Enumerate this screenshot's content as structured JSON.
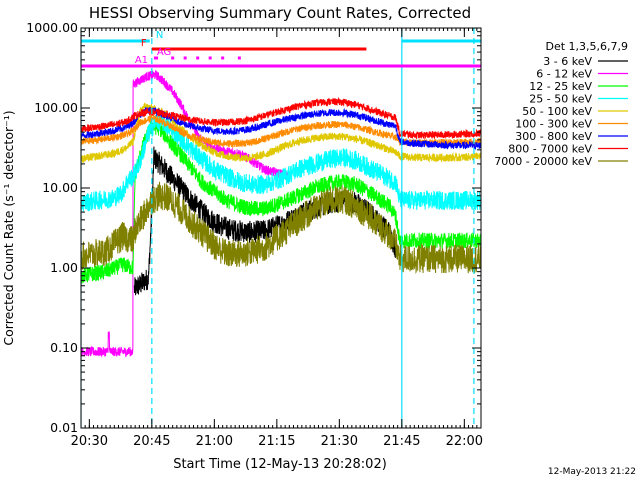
{
  "chart_data": {
    "type": "line",
    "title": "HESSI Observing Summary Count Rates, Corrected",
    "xlabel": "Start Time (12-May-13 20:28:02)",
    "ylabel": "Corrected Count Rate (s⁻¹ detector⁻¹)",
    "y_scale": "log",
    "ylim": [
      0.01,
      1000
    ],
    "xlim_minutes_after_start": [
      0,
      96
    ],
    "x_ticks": [
      {
        "label": "20:30",
        "t": 2
      },
      {
        "label": "20:45",
        "t": 17
      },
      {
        "label": "21:00",
        "t": 32
      },
      {
        "label": "21:15",
        "t": 47
      },
      {
        "label": "21:30",
        "t": 62
      },
      {
        "label": "21:45",
        "t": 77
      },
      {
        "label": "22:00",
        "t": 92
      }
    ],
    "y_ticks": [
      {
        "label": "1000.00",
        "v": 1000
      },
      {
        "label": "100.00",
        "v": 100
      },
      {
        "label": "10.00",
        "v": 10
      },
      {
        "label": "1.00",
        "v": 1
      },
      {
        "label": "0.10",
        "v": 0.1
      },
      {
        "label": "0.01",
        "v": 0.01
      }
    ],
    "legend_title": "Det 1,3,5,6,7,9",
    "legend_position": "right",
    "series": [
      {
        "name": "3 - 6 keV",
        "color": "#000000",
        "noise": 0.14,
        "points": [
          [
            12.8,
            0.55
          ],
          [
            14.2,
            0.62
          ],
          [
            16.2,
            0.75
          ],
          [
            17.0,
            5
          ],
          [
            17.5,
            24
          ],
          [
            19,
            20
          ],
          [
            21,
            15
          ],
          [
            24,
            10
          ],
          [
            27,
            6.5
          ],
          [
            30,
            4.5
          ],
          [
            33,
            3.5
          ],
          [
            36,
            3
          ],
          [
            40,
            2.8
          ],
          [
            44,
            2.9
          ],
          [
            48,
            3.5
          ],
          [
            52,
            4.5
          ],
          [
            56,
            5.6
          ],
          [
            60,
            6.5
          ],
          [
            63,
            7
          ],
          [
            66,
            6.5
          ],
          [
            69,
            5
          ],
          [
            72,
            3.5
          ],
          [
            74,
            2.8
          ],
          [
            75.5,
            1.8
          ]
        ]
      },
      {
        "name": "6 - 12 keV",
        "color": "#ff00ff",
        "noise": 0.06,
        "points": [
          [
            0,
            0.09
          ],
          [
            6.5,
            0.09
          ],
          [
            6.8,
            0.15
          ],
          [
            7.1,
            0.09
          ],
          [
            12.5,
            0.09
          ],
          [
            12.8,
            200
          ],
          [
            14,
            220
          ],
          [
            16,
            250
          ],
          [
            18,
            260
          ],
          [
            20,
            210
          ],
          [
            22,
            160
          ],
          [
            24,
            110
          ],
          [
            26,
            70
          ],
          [
            28,
            45
          ],
          [
            31,
            33
          ],
          [
            34,
            29
          ],
          [
            36,
            28
          ],
          [
            38,
            27
          ],
          [
            41,
            22
          ],
          [
            44,
            17
          ],
          [
            48,
            15
          ],
          [
            50,
            14
          ]
        ]
      },
      {
        "name": "12 - 25 keV",
        "color": "#00ff00",
        "noise": 0.1,
        "points": [
          [
            0,
            0.8
          ],
          [
            3,
            0.85
          ],
          [
            6,
            0.9
          ],
          [
            8,
            1.0
          ],
          [
            10,
            1.1
          ],
          [
            12.5,
            1.0
          ],
          [
            13,
            15
          ],
          [
            15,
            35
          ],
          [
            17,
            60
          ],
          [
            19,
            55
          ],
          [
            21,
            40
          ],
          [
            23,
            30
          ],
          [
            26,
            19
          ],
          [
            29,
            12
          ],
          [
            32,
            9
          ],
          [
            35,
            7
          ],
          [
            38,
            6
          ],
          [
            41,
            5.5
          ],
          [
            44,
            5.5
          ],
          [
            48,
            6.5
          ],
          [
            52,
            8
          ],
          [
            56,
            10
          ],
          [
            60,
            11.5
          ],
          [
            63,
            12
          ],
          [
            66,
            11
          ],
          [
            69,
            9
          ],
          [
            72,
            7
          ],
          [
            74,
            6
          ],
          [
            75.5,
            4.5
          ],
          [
            76.5,
            2.2
          ],
          [
            96,
            2.2
          ]
        ]
      },
      {
        "name": "25 - 50 keV",
        "color": "#00ffff",
        "noise": 0.12,
        "points": [
          [
            0,
            6.5
          ],
          [
            4,
            7
          ],
          [
            8,
            7.5
          ],
          [
            10,
            9
          ],
          [
            11,
            12
          ],
          [
            12.5,
            14
          ],
          [
            14,
            20
          ],
          [
            16,
            45
          ],
          [
            18,
            70
          ],
          [
            20,
            65
          ],
          [
            22,
            52
          ],
          [
            24,
            42
          ],
          [
            26,
            32
          ],
          [
            29,
            23
          ],
          [
            32,
            17
          ],
          [
            35,
            14
          ],
          [
            38,
            12
          ],
          [
            41,
            11
          ],
          [
            44,
            11
          ],
          [
            48,
            13
          ],
          [
            52,
            17
          ],
          [
            56,
            20
          ],
          [
            60,
            23
          ],
          [
            63,
            24
          ],
          [
            66,
            22
          ],
          [
            69,
            18
          ],
          [
            72,
            15
          ],
          [
            74,
            13
          ],
          [
            75.5,
            12
          ],
          [
            76.5,
            7
          ],
          [
            96,
            7
          ]
        ]
      },
      {
        "name": "50 - 100 keV",
        "color": "#e0c800",
        "noise": 0.05,
        "points": [
          [
            0,
            23
          ],
          [
            4,
            25
          ],
          [
            8,
            27
          ],
          [
            11,
            32
          ],
          [
            12.5,
            38
          ],
          [
            14,
            85
          ],
          [
            15,
            105
          ],
          [
            17,
            100
          ],
          [
            19,
            90
          ],
          [
            21,
            80
          ],
          [
            23,
            62
          ],
          [
            26,
            45
          ],
          [
            29,
            34
          ],
          [
            32,
            28
          ],
          [
            35,
            25
          ],
          [
            38,
            24
          ],
          [
            41,
            24
          ],
          [
            44,
            26
          ],
          [
            48,
            32
          ],
          [
            52,
            38
          ],
          [
            56,
            42
          ],
          [
            60,
            44
          ],
          [
            63,
            44
          ],
          [
            66,
            41
          ],
          [
            69,
            37
          ],
          [
            72,
            33
          ],
          [
            74,
            30
          ],
          [
            75.5,
            28
          ],
          [
            76.5,
            25
          ],
          [
            80,
            24
          ],
          [
            85,
            24
          ],
          [
            90,
            24
          ],
          [
            96,
            25
          ]
        ]
      },
      {
        "name": "100 - 300 keV",
        "color": "#ff8c00",
        "noise": 0.045,
        "points": [
          [
            0,
            38
          ],
          [
            4,
            40
          ],
          [
            8,
            43
          ],
          [
            11,
            47
          ],
          [
            12.5,
            52
          ],
          [
            14,
            65
          ],
          [
            17,
            75
          ],
          [
            19,
            70
          ],
          [
            21,
            62
          ],
          [
            23,
            54
          ],
          [
            26,
            45
          ],
          [
            29,
            40
          ],
          [
            32,
            37
          ],
          [
            35,
            36
          ],
          [
            38,
            36
          ],
          [
            41,
            37
          ],
          [
            44,
            41
          ],
          [
            48,
            48
          ],
          [
            52,
            55
          ],
          [
            56,
            60
          ],
          [
            60,
            62
          ],
          [
            63,
            62
          ],
          [
            66,
            58
          ],
          [
            69,
            53
          ],
          [
            72,
            48
          ],
          [
            74,
            45
          ],
          [
            75.5,
            43
          ],
          [
            76.5,
            38
          ],
          [
            80,
            37
          ],
          [
            85,
            37
          ],
          [
            90,
            37
          ],
          [
            96,
            38
          ]
        ]
      },
      {
        "name": "300 - 800 keV",
        "color": "#0000ff",
        "noise": 0.045,
        "points": [
          [
            0,
            45
          ],
          [
            4,
            48
          ],
          [
            8,
            52
          ],
          [
            11,
            58
          ],
          [
            12.5,
            66
          ],
          [
            14,
            82
          ],
          [
            16,
            95
          ],
          [
            18,
            90
          ],
          [
            20,
            82
          ],
          [
            22,
            74
          ],
          [
            24,
            66
          ],
          [
            26,
            60
          ],
          [
            29,
            55
          ],
          [
            32,
            52
          ],
          [
            35,
            51
          ],
          [
            38,
            52
          ],
          [
            41,
            55
          ],
          [
            44,
            61
          ],
          [
            48,
            70
          ],
          [
            52,
            78
          ],
          [
            56,
            84
          ],
          [
            60,
            88
          ],
          [
            63,
            87
          ],
          [
            66,
            82
          ],
          [
            69,
            74
          ],
          [
            72,
            66
          ],
          [
            74,
            62
          ],
          [
            75.5,
            60
          ],
          [
            76.5,
            38
          ],
          [
            80,
            36
          ],
          [
            85,
            35
          ],
          [
            90,
            34
          ],
          [
            96,
            34
          ]
        ]
      },
      {
        "name": "800 - 7000 keV",
        "color": "#ff0000",
        "noise": 0.045,
        "points": [
          [
            0,
            55
          ],
          [
            4,
            58
          ],
          [
            8,
            62
          ],
          [
            11,
            68
          ],
          [
            12.5,
            78
          ],
          [
            14,
            85
          ],
          [
            16,
            90
          ],
          [
            18,
            88
          ],
          [
            20,
            84
          ],
          [
            22,
            80
          ],
          [
            24,
            76
          ],
          [
            26,
            72
          ],
          [
            29,
            68
          ],
          [
            32,
            66
          ],
          [
            35,
            66
          ],
          [
            38,
            68
          ],
          [
            41,
            72
          ],
          [
            44,
            80
          ],
          [
            48,
            92
          ],
          [
            52,
            105
          ],
          [
            56,
            115
          ],
          [
            60,
            120
          ],
          [
            63,
            118
          ],
          [
            66,
            110
          ],
          [
            69,
            98
          ],
          [
            72,
            86
          ],
          [
            74,
            80
          ],
          [
            75.5,
            76
          ],
          [
            76.5,
            48
          ],
          [
            80,
            46
          ],
          [
            85,
            46
          ],
          [
            90,
            47
          ],
          [
            96,
            48
          ]
        ]
      },
      {
        "name": "7000 - 20000 keV",
        "color": "#808000",
        "noise": 0.18,
        "points": [
          [
            0,
            1.4
          ],
          [
            3,
            1.5
          ],
          [
            6,
            1.6
          ],
          [
            8,
            2
          ],
          [
            10,
            2.5
          ],
          [
            12.5,
            2.2
          ],
          [
            13,
            3
          ],
          [
            15,
            4.5
          ],
          [
            17,
            7
          ],
          [
            19,
            8
          ],
          [
            21,
            7.5
          ],
          [
            23,
            6
          ],
          [
            26,
            4
          ],
          [
            29,
            2.8
          ],
          [
            32,
            1.9
          ],
          [
            35,
            1.5
          ],
          [
            38,
            1.5
          ],
          [
            41,
            1.6
          ],
          [
            44,
            1.8
          ],
          [
            48,
            2.6
          ],
          [
            52,
            3.8
          ],
          [
            56,
            5.5
          ],
          [
            60,
            7
          ],
          [
            63,
            7.2
          ],
          [
            66,
            6
          ],
          [
            69,
            4.5
          ],
          [
            72,
            3.2
          ],
          [
            74,
            2.6
          ],
          [
            75.5,
            2
          ],
          [
            76.5,
            1.3
          ],
          [
            96,
            1.3
          ]
        ]
      }
    ],
    "flags": [
      {
        "label": "N",
        "color": "#00e0ff",
        "segments": [
          [
            0,
            16.5
          ],
          [
            77,
            96
          ]
        ]
      },
      {
        "label": "F",
        "color": "#ff0000",
        "segments": [
          [
            17,
            68.5
          ]
        ]
      },
      {
        "label": "AG",
        "color": "#ff00ff",
        "segments": [
          [
            17.5,
            18.5
          ]
        ],
        "dots": [
          22,
          25,
          28,
          31,
          34,
          38
        ]
      },
      {
        "label": "A1",
        "color": "#ff00ff",
        "segments": [
          [
            0,
            96
          ]
        ]
      }
    ],
    "vertical_markers": [
      {
        "t": 0,
        "style": "solid",
        "color": "#00e0ff"
      },
      {
        "t": 17,
        "style": "dashed",
        "color": "#00e0ff"
      },
      {
        "t": 77,
        "style": "solid",
        "color": "#00e0ff"
      },
      {
        "t": 94.3,
        "style": "dashed",
        "color": "#00e0ff"
      }
    ]
  },
  "footer_timestamp": "12-May-2013 21:22"
}
